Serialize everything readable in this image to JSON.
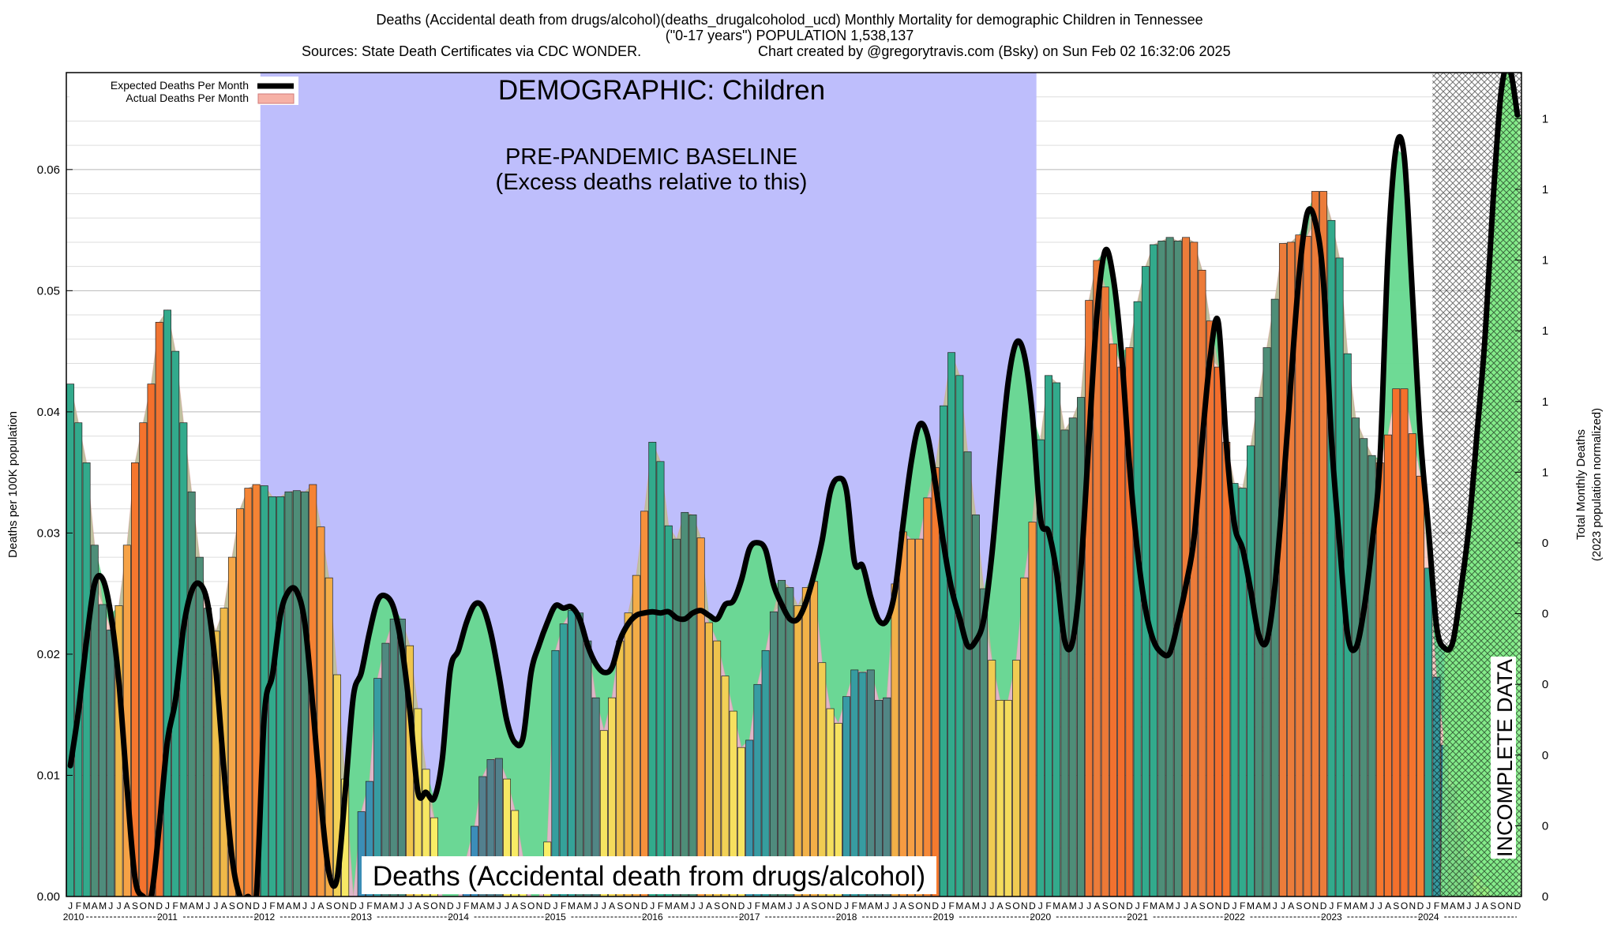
{
  "header": {
    "line1": "Deaths (Accidental death from drugs/alcohol)(deaths_drugalcoholod_ucd) Monthly Mortality for demographic Children in Tennessee",
    "line2": "(\"0-17 years\") POPULATION 1,538,137",
    "line3a": "Sources: State Death Certificates via CDC WONDER.",
    "line3b": "Chart created by @gregorytravis.com (Bsky) on Sun Feb 02 16:32:06 2025"
  },
  "annotations": {
    "demographic": "DEMOGRAPHIC: Children",
    "baseline1": "PRE-PANDEMIC BASELINE",
    "baseline2": "(Excess deaths relative to this)",
    "cause": "Deaths (Accidental death from drugs/alcohol)",
    "incomplete": "INCOMPLETE DATA"
  },
  "legend": {
    "expected": "Expected Deaths Per Month",
    "actual": "Actual Deaths Per Month"
  },
  "colors": {
    "baseline_shade": "#bebefc",
    "excess_fill": "#66d88f",
    "incomplete_fill": "#88ef88",
    "expected_line": "#000000",
    "actual_outline": "#f0a0a0"
  },
  "chart_data": {
    "type": "bar",
    "ylabel": "Deaths per 100K population",
    "y2label_line1": "Total Monthly Deaths",
    "y2label_line2": "(2023 population normalized)",
    "ylim": [
      0,
      0.068
    ],
    "y_ticks": [
      "0.00",
      "0.01",
      "0.02",
      "0.03",
      "0.04",
      "0.05",
      "0.06"
    ],
    "y2_ticks": [
      "0",
      "0",
      "0",
      "0",
      "0",
      "0",
      "1",
      "1",
      "1",
      "1",
      "1",
      "1"
    ],
    "month_letters": [
      "J",
      "F",
      "M",
      "A",
      "M",
      "J",
      "J",
      "A",
      "S",
      "O",
      "N",
      "D"
    ],
    "years": [
      "2010",
      "2011",
      "2012",
      "2013",
      "2014",
      "2015",
      "2016",
      "2017",
      "2018",
      "2019",
      "2020",
      "2021",
      "2022",
      "2023",
      "2024"
    ],
    "baseline_period": [
      "2012-01",
      "2019-12"
    ],
    "incomplete_from": "2024-03",
    "actual": [
      0.0423,
      0.0391,
      0.0358,
      0.029,
      0.0241,
      0.022,
      0.024,
      0.029,
      0.0358,
      0.0391,
      0.0423,
      0.0474,
      0.0484,
      0.045,
      0.0391,
      0.0334,
      0.028,
      0.0238,
      0.0219,
      0.0238,
      0.028,
      0.032,
      0.0337,
      0.034,
      0.0339,
      0.033,
      0.033,
      0.0334,
      0.0335,
      0.0334,
      0.034,
      0.0305,
      0.0263,
      0.0183,
      0.0097,
      0.0,
      0.007,
      0.0095,
      0.018,
      0.0209,
      0.0229,
      0.0229,
      0.0207,
      0.0155,
      0.0105,
      0.0065,
      0.0,
      0.0,
      0.0,
      0.0032,
      0.0058,
      0.0099,
      0.0113,
      0.0114,
      0.0097,
      0.0071,
      0.0032,
      0.0,
      0.0,
      0.0045,
      0.0203,
      0.0225,
      0.0236,
      0.0234,
      0.0211,
      0.0164,
      0.0137,
      0.0164,
      0.0211,
      0.0234,
      0.0265,
      0.0318,
      0.0375,
      0.0359,
      0.0306,
      0.0295,
      0.0317,
      0.0315,
      0.0296,
      0.0226,
      0.0211,
      0.0182,
      0.0153,
      0.0123,
      0.0129,
      0.0175,
      0.0203,
      0.0235,
      0.0261,
      0.0255,
      0.024,
      0.0255,
      0.026,
      0.0193,
      0.0155,
      0.0143,
      0.0165,
      0.0187,
      0.0185,
      0.0187,
      0.0162,
      0.0164,
      0.0258,
      0.0301,
      0.0295,
      0.0295,
      0.0329,
      0.0354,
      0.0405,
      0.0449,
      0.043,
      0.0367,
      0.0315,
      0.0254,
      0.0195,
      0.0162,
      0.0162,
      0.0195,
      0.0263,
      0.0309,
      0.0377,
      0.043,
      0.0424,
      0.0385,
      0.0395,
      0.0412,
      0.0492,
      0.0525,
      0.0503,
      0.0456,
      0.0437,
      0.0453,
      0.0491,
      0.052,
      0.0538,
      0.0541,
      0.0544,
      0.0541,
      0.0544,
      0.054,
      0.0517,
      0.0475,
      0.0437,
      0.0375,
      0.0341,
      0.0337,
      0.0372,
      0.0412,
      0.0453,
      0.0493,
      0.0539,
      0.054,
      0.0546,
      0.0545,
      0.0582,
      0.0582,
      0.0558,
      0.0527,
      0.0448,
      0.0395,
      0.0378,
      0.0364,
      0.0358,
      0.0381,
      0.0419,
      0.0419,
      0.0382,
      0.0347,
      0.0271,
      0.0181,
      0.0125,
      0.0091,
      0.0054,
      0.0033,
      0.0017,
      0.0008,
      0.0,
      0.0,
      0.0,
      0.0
    ],
    "expected": [
      0.0108,
      0.0153,
      0.0211,
      0.0258,
      0.0262,
      0.0233,
      0.0177,
      0.0091,
      0.0015,
      0.0,
      0.0,
      0.0058,
      0.0128,
      0.0162,
      0.0222,
      0.0252,
      0.0258,
      0.0241,
      0.0187,
      0.0104,
      0.0032,
      0.0,
      0.0,
      0.0,
      0.015,
      0.0183,
      0.0233,
      0.0252,
      0.0252,
      0.0226,
      0.0156,
      0.0078,
      0.0019,
      0.0015,
      0.0086,
      0.0165,
      0.0185,
      0.0218,
      0.0244,
      0.0248,
      0.0238,
      0.0206,
      0.0153,
      0.0086,
      0.0086,
      0.0081,
      0.0113,
      0.0187,
      0.0203,
      0.0226,
      0.0241,
      0.0239,
      0.0218,
      0.0183,
      0.0145,
      0.0127,
      0.0131,
      0.0185,
      0.0208,
      0.0226,
      0.024,
      0.0238,
      0.0239,
      0.0229,
      0.0207,
      0.0192,
      0.0185,
      0.0189,
      0.0212,
      0.0225,
      0.0232,
      0.0234,
      0.0235,
      0.0234,
      0.0235,
      0.023,
      0.0229,
      0.0234,
      0.0236,
      0.0232,
      0.0229,
      0.0241,
      0.0244,
      0.0261,
      0.0287,
      0.0292,
      0.0286,
      0.0257,
      0.0241,
      0.0229,
      0.0229,
      0.0243,
      0.0266,
      0.0294,
      0.0334,
      0.0345,
      0.0335,
      0.0276,
      0.0273,
      0.0247,
      0.0228,
      0.0228,
      0.0252,
      0.0307,
      0.0358,
      0.0389,
      0.0381,
      0.0341,
      0.0292,
      0.0254,
      0.023,
      0.0207,
      0.0211,
      0.0229,
      0.0283,
      0.0357,
      0.0424,
      0.0457,
      0.0447,
      0.0398,
      0.0312,
      0.0301,
      0.0267,
      0.0211,
      0.0211,
      0.0271,
      0.0378,
      0.0482,
      0.0533,
      0.0511,
      0.045,
      0.0357,
      0.0285,
      0.0237,
      0.0211,
      0.0201,
      0.0201,
      0.0226,
      0.0257,
      0.0296,
      0.0376,
      0.0445,
      0.0474,
      0.0373,
      0.0307,
      0.0287,
      0.0253,
      0.0216,
      0.0211,
      0.0256,
      0.0335,
      0.0427,
      0.0513,
      0.0564,
      0.0557,
      0.0508,
      0.0377,
      0.0292,
      0.0216,
      0.0205,
      0.0236,
      0.029,
      0.0361,
      0.0532,
      0.0618,
      0.0611,
      0.0498,
      0.038,
      0.0303,
      0.0223,
      0.0205,
      0.021,
      0.0253,
      0.0305,
      0.0382,
      0.0462,
      0.0576,
      0.0665,
      0.0684,
      0.0645
    ]
  }
}
